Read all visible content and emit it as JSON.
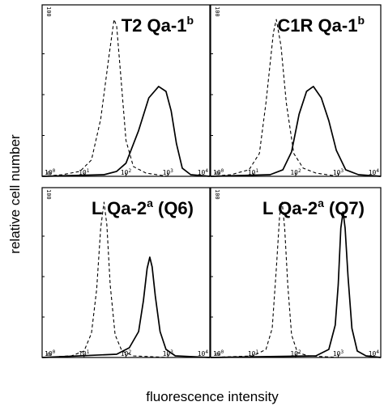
{
  "chart_data": {
    "type": "line",
    "x_scale": "log",
    "xlabel": "fluorescence intensity",
    "ylabel": "relative cell number",
    "xlim": [
      1,
      10000
    ],
    "ylim": [
      0,
      100
    ],
    "x_ticks": [
      1,
      10,
      100,
      1000,
      10000
    ],
    "x_tick_labels": [
      {
        "base": "10",
        "exp": "0"
      },
      {
        "base": "10",
        "exp": "1"
      },
      {
        "base": "10",
        "exp": "2"
      },
      {
        "base": "10",
        "exp": "3"
      },
      {
        "base": "10",
        "exp": "4"
      }
    ],
    "y_ticks": [
      0,
      100
    ],
    "y_tick_labels": [
      "0",
      "100"
    ],
    "legend": "none",
    "grid": false,
    "panels": [
      {
        "title": "T2 Qa-1",
        "title_sup": "b",
        "series": [
          {
            "style": "dashed",
            "x": [
              1,
              3,
              8,
              15,
              25,
              40,
              52,
              60,
              75,
              100,
              150,
              300,
              1000,
              10000
            ],
            "y": [
              0,
              1,
              3,
              10,
              35,
              75,
              96,
              92,
              62,
              22,
              6,
              2,
              0,
              0
            ]
          },
          {
            "style": "solid",
            "x": [
              1,
              30,
              60,
              100,
              200,
              350,
              600,
              900,
              1200,
              1600,
              2200,
              3500,
              10000
            ],
            "y": [
              0,
              1,
              3,
              8,
              28,
              48,
              55,
              52,
              40,
              20,
              5,
              1,
              0
            ]
          }
        ]
      },
      {
        "title": "C1R Qa-1",
        "title_sup": "b",
        "series": [
          {
            "style": "dashed",
            "x": [
              1,
              3,
              8,
              14,
              20,
              30,
              35,
              45,
              60,
              90,
              150,
              300,
              1000,
              10000
            ],
            "y": [
              0,
              1,
              4,
              14,
              45,
              88,
              96,
              80,
              45,
              14,
              5,
              2,
              0,
              0
            ]
          },
          {
            "style": "solid",
            "x": [
              1,
              25,
              50,
              80,
              120,
              180,
              260,
              400,
              600,
              900,
              1500,
              3000,
              10000
            ],
            "y": [
              0,
              1,
              4,
              15,
              38,
              52,
              55,
              48,
              34,
              16,
              4,
              1,
              0
            ]
          }
        ]
      },
      {
        "title": "L Qa-2",
        "title_sup": "a",
        "title_suffix": " (Q6)",
        "series": [
          {
            "style": "dashed",
            "x": [
              1,
              5,
              10,
              15,
              20,
              25,
              30,
              35,
              42,
              55,
              80,
              150,
              1000,
              10000
            ],
            "y": [
              0,
              1,
              4,
              15,
              42,
              80,
              96,
              82,
              45,
              14,
              4,
              1,
              0,
              0
            ]
          },
          {
            "style": "solid",
            "x": [
              1,
              60,
              120,
              200,
              260,
              320,
              370,
              420,
              500,
              650,
              900,
              1500,
              10000
            ],
            "y": [
              0,
              2,
              6,
              16,
              35,
              55,
              62,
              56,
              38,
              16,
              5,
              1,
              0
            ]
          }
        ]
      },
      {
        "title": "L Qa-2",
        "title_sup": "a",
        "title_suffix": " (Q7)",
        "series": [
          {
            "style": "dashed",
            "x": [
              1,
              10,
              20,
              28,
              35,
              42,
              48,
              55,
              65,
              80,
              110,
              200,
              1000,
              10000
            ],
            "y": [
              0,
              1,
              5,
              18,
              55,
              88,
              96,
              80,
              45,
              14,
              3,
              1,
              0,
              0
            ]
          },
          {
            "style": "solid",
            "x": [
              1,
              300,
              600,
              850,
              1000,
              1150,
              1300,
              1450,
              1700,
              2100,
              2800,
              4500,
              10000
            ],
            "y": [
              0,
              1,
              5,
              20,
              45,
              80,
              90,
              80,
              50,
              18,
              4,
              1,
              0
            ]
          }
        ]
      }
    ]
  }
}
